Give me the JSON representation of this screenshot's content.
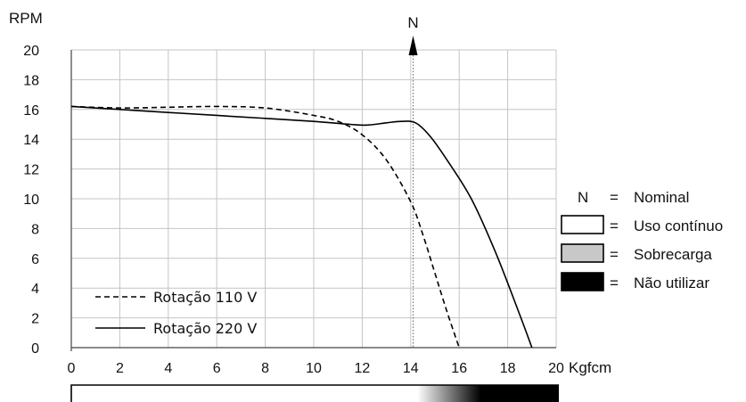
{
  "chart_data": {
    "type": "line",
    "title": "",
    "xlabel": "Kgfcm",
    "ylabel": "RPM",
    "xlim": [
      0,
      20
    ],
    "ylim": [
      0,
      20
    ],
    "x_ticks": [
      "0",
      "2",
      "4",
      "6",
      "8",
      "10",
      "12",
      "14",
      "16",
      "18",
      "20"
    ],
    "y_ticks": [
      "0",
      "2",
      "4",
      "6",
      "8",
      "10",
      "12",
      "14",
      "16",
      "18",
      "20"
    ],
    "grid": true,
    "nominal_marker": {
      "label": "N",
      "x": 14.1
    },
    "series": [
      {
        "name": "Rotação 110 V",
        "style": "dashed",
        "points": [
          [
            0,
            16.2
          ],
          [
            2,
            16.1
          ],
          [
            4,
            16.15
          ],
          [
            6,
            16.2
          ],
          [
            8,
            16.1
          ],
          [
            10,
            15.6
          ],
          [
            11,
            15.2
          ],
          [
            12,
            14.3
          ],
          [
            13,
            12.6
          ],
          [
            14,
            9.8
          ],
          [
            14.5,
            7.6
          ],
          [
            15,
            5.0
          ],
          [
            15.5,
            2.4
          ],
          [
            16,
            0
          ]
        ]
      },
      {
        "name": "Rotação 220 V",
        "style": "solid",
        "points": [
          [
            0,
            16.2
          ],
          [
            2,
            16.0
          ],
          [
            4,
            15.8
          ],
          [
            6,
            15.6
          ],
          [
            8,
            15.4
          ],
          [
            10,
            15.2
          ],
          [
            11.5,
            15.0
          ],
          [
            12.2,
            14.95
          ],
          [
            13,
            15.1
          ],
          [
            13.6,
            15.2
          ],
          [
            14.2,
            15.1
          ],
          [
            14.8,
            14.2
          ],
          [
            15.5,
            12.6
          ],
          [
            16.5,
            10.0
          ],
          [
            17.5,
            6.4
          ],
          [
            18.5,
            2.2
          ],
          [
            19,
            0
          ]
        ]
      }
    ],
    "key": [
      {
        "symbol": "N",
        "label": "Nominal"
      },
      {
        "swatch": "#ffffff",
        "label": "Uso contínuo"
      },
      {
        "swatch": "#c8c8c8",
        "label": "Sobrecarga"
      },
      {
        "swatch": "#000000",
        "label": "Não utilizar"
      }
    ],
    "duty_bar": {
      "white_until": 14.2,
      "black_from": 16.8
    }
  },
  "key_equals": "="
}
